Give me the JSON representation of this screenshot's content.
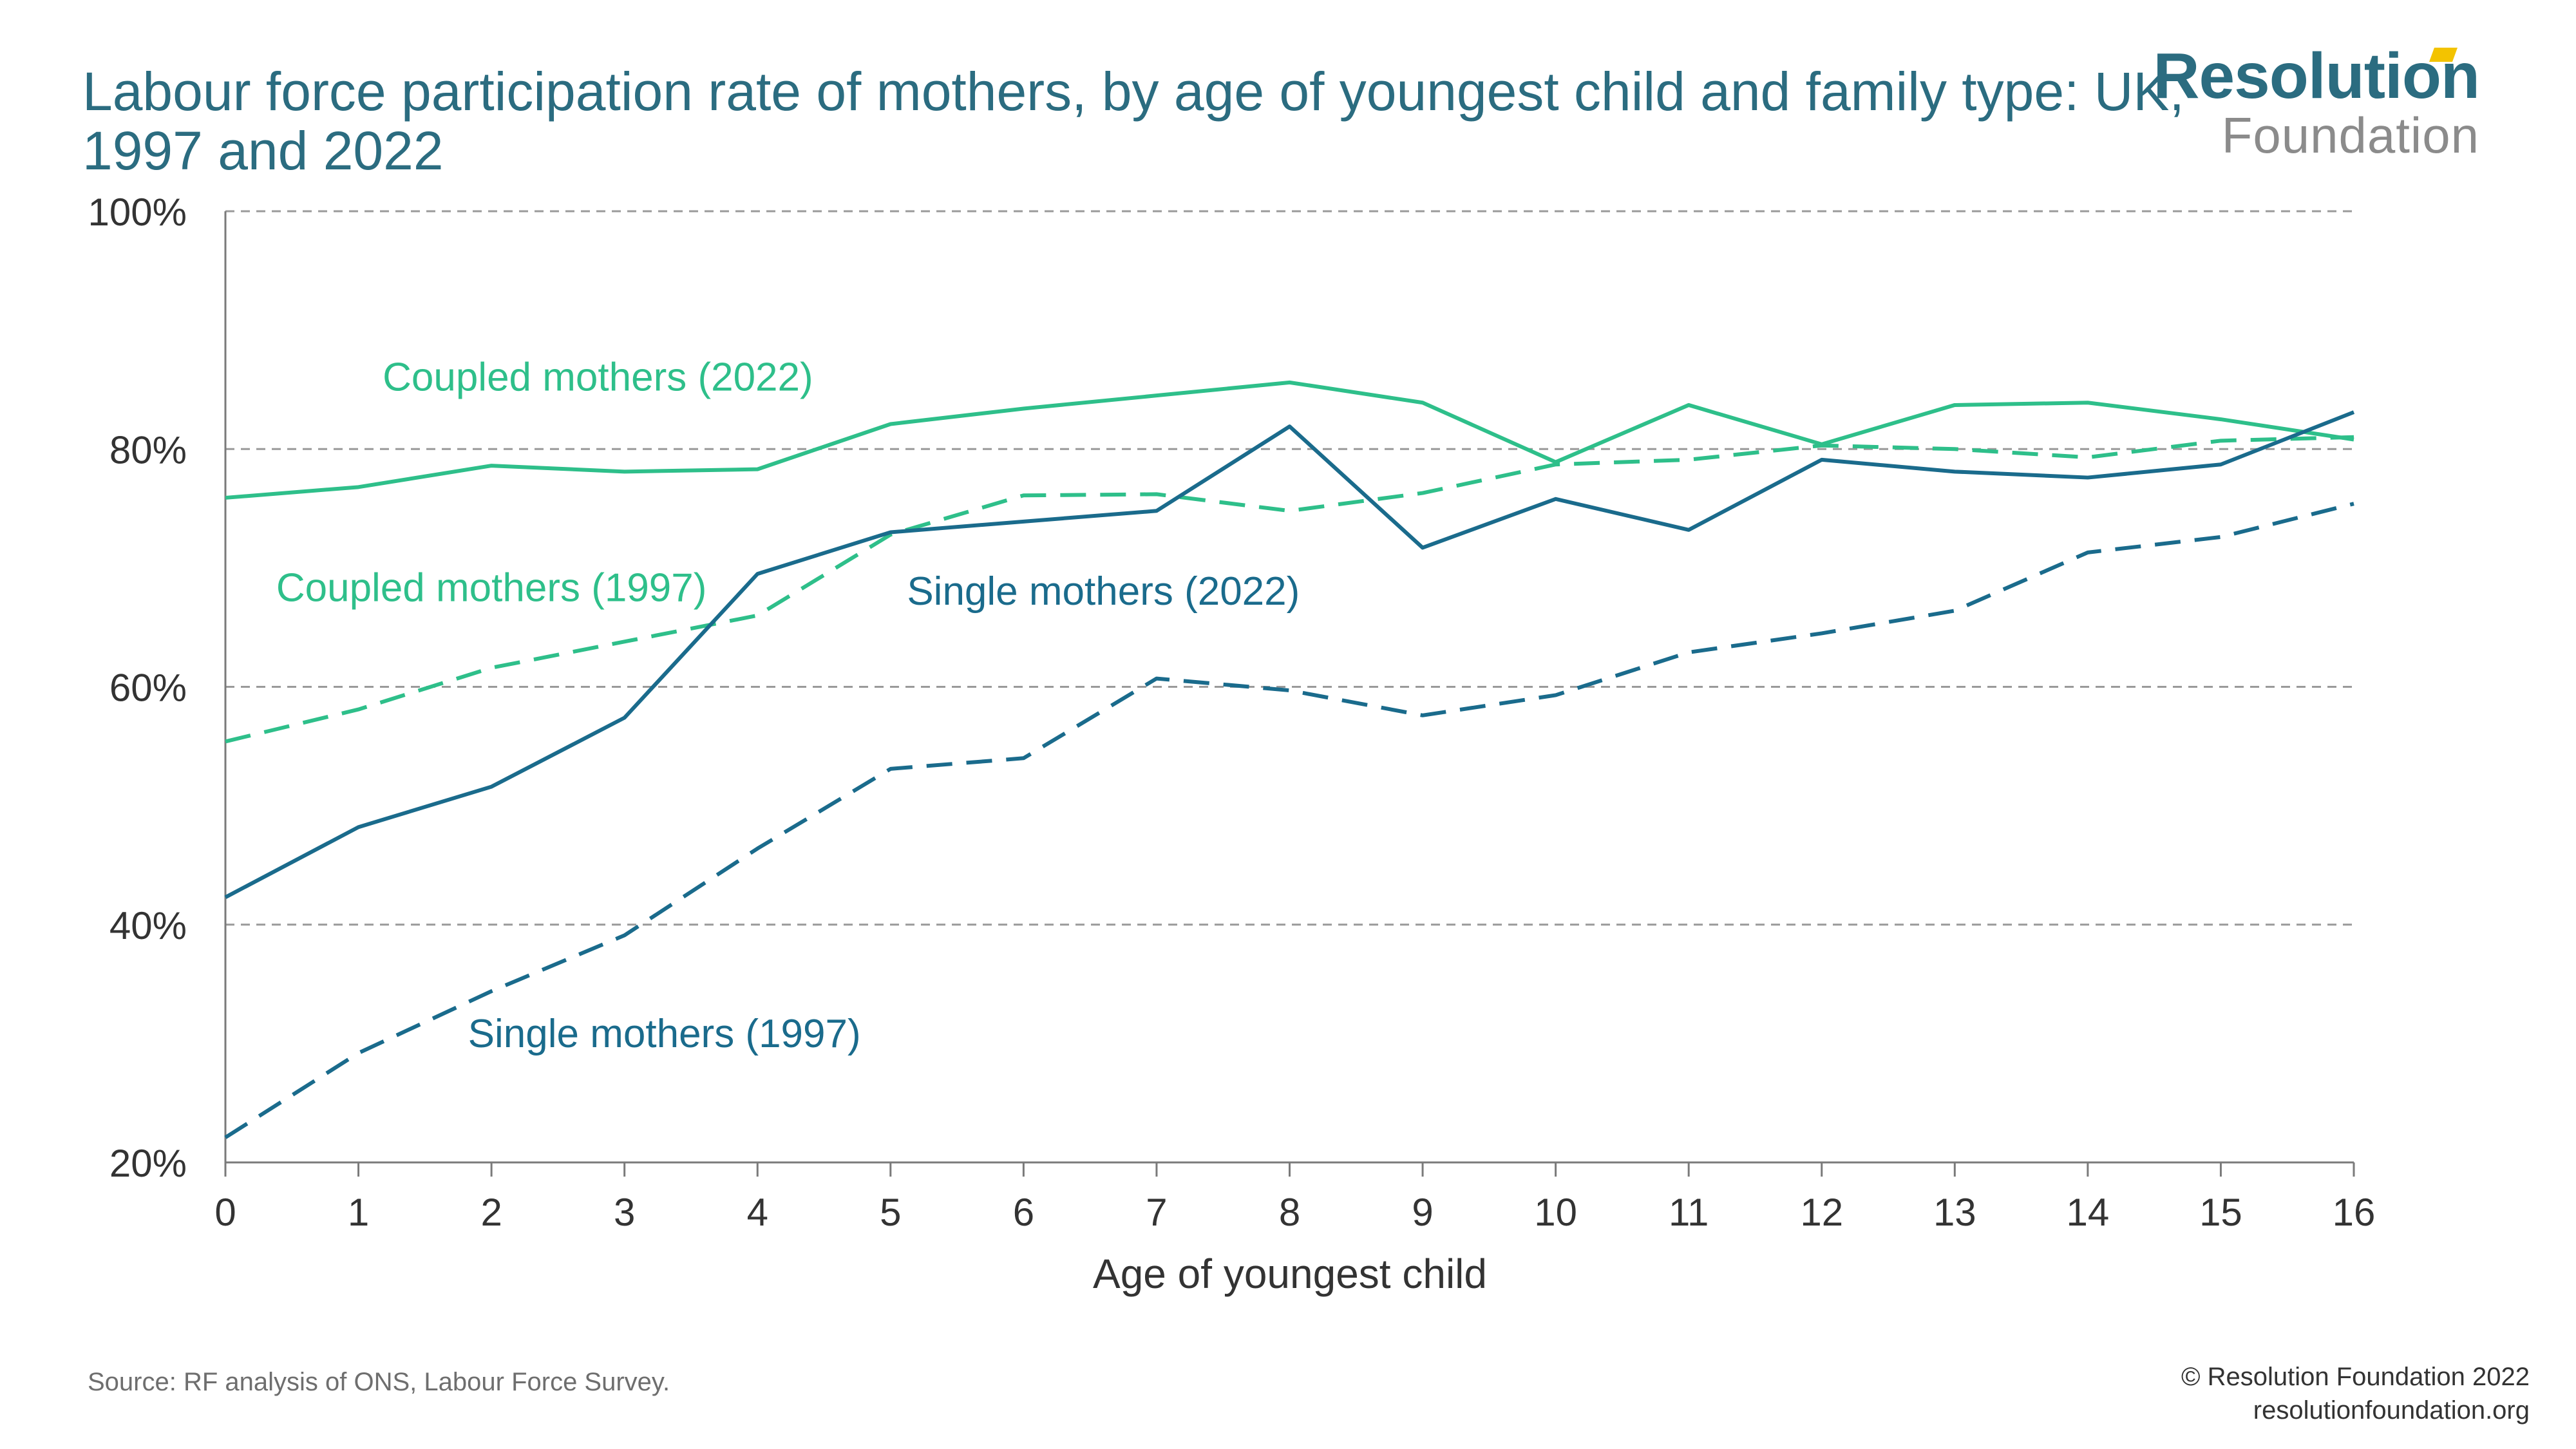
{
  "header": {
    "title": "Labour force participation rate of mothers, by age of youngest child and family type: UK, 1997 and 2022"
  },
  "logo": {
    "main": "Resolution",
    "sub": "Foundation"
  },
  "footer": {
    "source": "Source: RF analysis of ONS, Labour Force Survey.",
    "copyright": "© Resolution Foundation 2022",
    "website": "resolutionfoundation.org"
  },
  "colors": {
    "coupled": "#2ebf8a",
    "single": "#1a6b8c",
    "grid": "#9a9a9a",
    "axis": "#7a7a7a",
    "title": "#2b6c80"
  },
  "chart_data": {
    "type": "line",
    "title": "Labour force participation rate of mothers, by age of youngest child and family type: UK, 1997 and 2022",
    "xlabel": "Age of youngest child",
    "ylabel": "",
    "x": [
      0,
      1,
      2,
      3,
      4,
      5,
      6,
      7,
      8,
      9,
      10,
      11,
      12,
      13,
      14,
      15,
      16
    ],
    "xlim": [
      0,
      16
    ],
    "ylim": [
      20,
      100
    ],
    "yticks": [
      20,
      40,
      60,
      80,
      100
    ],
    "ytick_labels": [
      "20%",
      "40%",
      "60%",
      "80%",
      "100%"
    ],
    "grid": "horizontal dashed",
    "series": [
      {
        "name": "Coupled mothers (2022)",
        "color": "#2ebf8a",
        "dash": "solid",
        "values": [
          75.9,
          76.8,
          78.6,
          78.1,
          78.3,
          82.1,
          83.4,
          84.5,
          85.6,
          83.9,
          78.9,
          83.7,
          80.4,
          83.7,
          83.9,
          82.5,
          80.8
        ]
      },
      {
        "name": "Coupled mothers (1997)",
        "color": "#2ebf8a",
        "dash": "dashed",
        "values": [
          55.4,
          58.1,
          61.6,
          63.8,
          66.0,
          72.8,
          76.1,
          76.2,
          74.8,
          76.3,
          78.7,
          79.1,
          80.3,
          80.0,
          79.3,
          80.7,
          81.0
        ]
      },
      {
        "name": "Single mothers (2022)",
        "color": "#1a6b8c",
        "dash": "solid",
        "values": [
          42.3,
          48.2,
          51.6,
          57.4,
          69.5,
          73.0,
          73.9,
          74.8,
          81.9,
          71.7,
          75.8,
          73.2,
          79.1,
          78.1,
          77.6,
          78.7,
          83.1
        ]
      },
      {
        "name": "Single mothers (1997)",
        "color": "#1a6b8c",
        "dash": "dashed",
        "values": [
          22.1,
          29.2,
          34.4,
          39.1,
          46.4,
          53.1,
          54.0,
          60.7,
          59.7,
          57.6,
          59.3,
          62.9,
          64.5,
          66.4,
          71.3,
          72.6,
          75.4
        ]
      }
    ],
    "labels": [
      {
        "text": "Coupled mothers (2022)",
        "x": 2.8,
        "y": 86.1,
        "color": "#2ebf8a"
      },
      {
        "text": "Coupled mothers (1997)",
        "x": 2.0,
        "y": 68.4,
        "color": "#2ebf8a"
      },
      {
        "text": "Single mothers (2022)",
        "x": 6.6,
        "y": 68.1,
        "color": "#1a6b8c"
      },
      {
        "text": "Single mothers (1997)",
        "x": 3.3,
        "y": 30.9,
        "color": "#1a6b8c"
      }
    ]
  }
}
